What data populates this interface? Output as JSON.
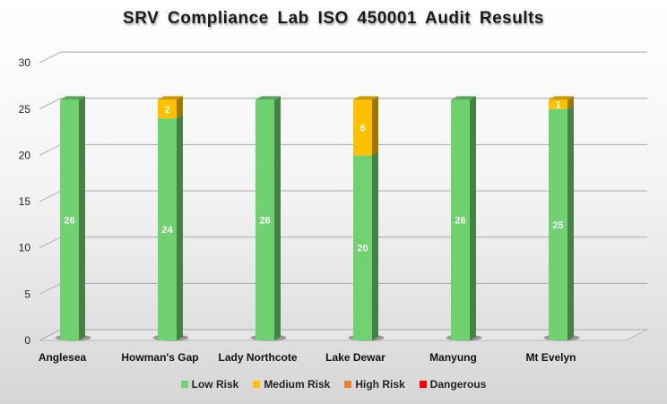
{
  "chart_data": {
    "type": "bar",
    "stacked": true,
    "title": "SRV Compliance  Lab ISO 450001 Audit  Results",
    "categories": [
      "Anglesea",
      "Howman's Gap",
      "Lady Northcote",
      "Lake Dewar",
      "Manyung",
      "Mt Evelyn"
    ],
    "series": [
      {
        "name": "Low Risk",
        "color": "#6fd16f",
        "values": [
          26,
          24,
          26,
          20,
          26,
          25
        ]
      },
      {
        "name": "Medium Risk",
        "color": "#ffc000",
        "values": [
          0,
          2,
          0,
          6,
          0,
          1
        ]
      },
      {
        "name": "High Risk",
        "color": "#ed7d31",
        "values": [
          0,
          0,
          0,
          0,
          0,
          0
        ]
      },
      {
        "name": "Dangerous",
        "color": "#ff0000",
        "values": [
          0,
          0,
          0,
          0,
          0,
          0
        ]
      }
    ],
    "ylim": [
      0,
      30
    ],
    "yticks": [
      0,
      5,
      10,
      15,
      20,
      25,
      30
    ],
    "grid": true,
    "legend": "bottom"
  }
}
